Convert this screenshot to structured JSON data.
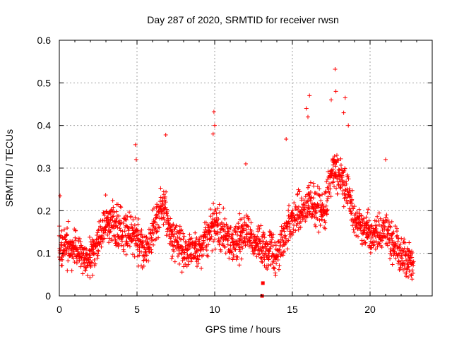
{
  "chart_data": {
    "type": "scatter",
    "title": "Day 287 of 2020, SRMTID for receiver rwsn",
    "xlabel": "GPS time / hours",
    "ylabel": "SRMTID / TECUs",
    "xlim": [
      0,
      24
    ],
    "ylim": [
      0,
      0.6
    ],
    "xticks": [
      0,
      5,
      10,
      15,
      20
    ],
    "xtick_labels": [
      "0",
      "5",
      "10",
      "15",
      "20"
    ],
    "yticks": [
      0,
      0.1,
      0.2,
      0.3,
      0.4,
      0.5,
      0.6
    ],
    "ytick_labels": [
      "0",
      "0.1",
      "0.2",
      "0.3",
      "0.4",
      "0.5",
      "0.6"
    ],
    "grid": true,
    "marker": "plus",
    "color": "#ff0000",
    "series": [
      {
        "name": "SRMTID",
        "x_range": [
          0,
          22.8
        ],
        "sample_step_hours": 0.0167,
        "profile_x": [
          0,
          1,
          2,
          2.5,
          3,
          4,
          5,
          5.5,
          6,
          6.8,
          7,
          8,
          9,
          10,
          11,
          12,
          13,
          14,
          15,
          16,
          17,
          17.7,
          18.5,
          19,
          20,
          21,
          22,
          22.8
        ],
        "profile_y": [
          0.12,
          0.11,
          0.09,
          0.13,
          0.18,
          0.15,
          0.14,
          0.1,
          0.15,
          0.22,
          0.15,
          0.1,
          0.11,
          0.17,
          0.12,
          0.15,
          0.11,
          0.1,
          0.18,
          0.22,
          0.2,
          0.3,
          0.25,
          0.18,
          0.14,
          0.16,
          0.1,
          0.08
        ],
        "spread": 0.045,
        "outliers": [
          {
            "x": 0.05,
            "y": 0.235
          },
          {
            "x": 4.9,
            "y": 0.355
          },
          {
            "x": 4.95,
            "y": 0.32
          },
          {
            "x": 6.85,
            "y": 0.378
          },
          {
            "x": 9.95,
            "y": 0.432
          },
          {
            "x": 10.0,
            "y": 0.4
          },
          {
            "x": 9.9,
            "y": 0.38
          },
          {
            "x": 15.9,
            "y": 0.44
          },
          {
            "x": 16.1,
            "y": 0.47
          },
          {
            "x": 16.0,
            "y": 0.42
          },
          {
            "x": 17.5,
            "y": 0.46
          },
          {
            "x": 17.75,
            "y": 0.532
          },
          {
            "x": 17.8,
            "y": 0.48
          },
          {
            "x": 18.4,
            "y": 0.465
          },
          {
            "x": 18.3,
            "y": 0.43
          },
          {
            "x": 18.6,
            "y": 0.4
          },
          {
            "x": 14.6,
            "y": 0.368
          },
          {
            "x": 12.0,
            "y": 0.31
          },
          {
            "x": 21.0,
            "y": 0.32
          }
        ],
        "low_marks": [
          {
            "x": 13.05,
            "y": 0.0
          },
          {
            "x": 13.1,
            "y": 0.03
          }
        ]
      }
    ]
  }
}
